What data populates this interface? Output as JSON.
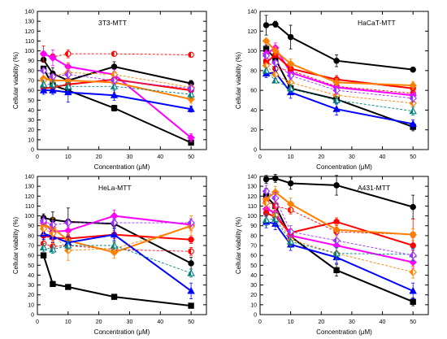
{
  "chart_data": [
    {
      "type": "line",
      "title": "3T3-MTT",
      "xlabel": "Concentration (μM)",
      "ylabel": "Cellular viability (%)",
      "xlim": [
        0,
        55
      ],
      "ylim": [
        0,
        140
      ],
      "xticks": [
        0,
        10,
        20,
        30,
        40,
        50
      ],
      "yticks": [
        0,
        10,
        20,
        30,
        40,
        50,
        60,
        70,
        80,
        90,
        100,
        110,
        120,
        130,
        140
      ],
      "x": [
        2,
        5,
        10,
        25,
        50
      ],
      "series": [
        {
          "color": "#000000",
          "style": "solid",
          "marker": "circle",
          "values": [
            91,
            77,
            70,
            84,
            67
          ]
        },
        {
          "color": "#000000",
          "style": "solid",
          "marker": "square",
          "values": [
            82,
            65,
            60,
            42,
            7
          ]
        },
        {
          "color": "#ff0000",
          "style": "dashed",
          "marker": "half-circle",
          "values": [
            97,
            94,
            97,
            97,
            96
          ]
        },
        {
          "color": "#ff00ff",
          "style": "solid",
          "marker": "diamond",
          "values": [
            97,
            93,
            84,
            76,
            12
          ]
        },
        {
          "color": "#ff0000",
          "style": "solid",
          "marker": "circle",
          "values": [
            62,
            63,
            66,
            71,
            60
          ]
        },
        {
          "color": "#ff7f00",
          "style": "solid",
          "marker": "diamond",
          "values": [
            72,
            70,
            70,
            68,
            51
          ]
        },
        {
          "color": "#0000ff",
          "style": "solid",
          "marker": "triangle",
          "values": [
            60,
            60,
            58,
            55,
            41
          ]
        },
        {
          "color": "#ff7f00",
          "style": "dashed",
          "marker": "half-diamond",
          "values": [
            70,
            74,
            78,
            76,
            63
          ]
        },
        {
          "color": "#008080",
          "style": "dashed",
          "marker": "half-triangle",
          "values": [
            66,
            66,
            64,
            64,
            56
          ]
        },
        {
          "color": "#9b30ff",
          "style": "dashed",
          "marker": "half-diamond",
          "values": [
            80,
            74,
            76,
            70,
            62
          ]
        }
      ]
    },
    {
      "type": "line",
      "title": "HaCaT-MTT",
      "xlabel": "Concentration (μM)",
      "ylabel": "Cellular viability (%)",
      "xlim": [
        0,
        55
      ],
      "ylim": [
        0,
        140
      ],
      "xticks": [
        0,
        10,
        20,
        30,
        40,
        50
      ],
      "yticks": [
        0,
        20,
        40,
        60,
        80,
        100,
        120,
        140
      ],
      "x": [
        2,
        5,
        10,
        25,
        50
      ],
      "series": [
        {
          "color": "#000000",
          "style": "solid",
          "marker": "circle",
          "values": [
            126,
            127,
            114,
            90,
            81
          ]
        },
        {
          "color": "#000000",
          "style": "solid",
          "marker": "square",
          "values": [
            102,
            92,
            62,
            51,
            23
          ]
        },
        {
          "color": "#ff0000",
          "style": "dashed",
          "marker": "half-circle",
          "values": [
            90,
            82,
            80,
            64,
            57
          ]
        },
        {
          "color": "#ff00ff",
          "style": "solid",
          "marker": "diamond",
          "values": [
            97,
            103,
            78,
            63,
            55
          ]
        },
        {
          "color": "#ff0000",
          "style": "solid",
          "marker": "circle",
          "values": [
            88,
            96,
            82,
            71,
            62
          ]
        },
        {
          "color": "#ff7f00",
          "style": "solid",
          "marker": "diamond",
          "values": [
            110,
            100,
            87,
            68,
            65
          ]
        },
        {
          "color": "#0000ff",
          "style": "solid",
          "marker": "triangle",
          "values": [
            77,
            78,
            58,
            41,
            26
          ]
        },
        {
          "color": "#ff7f00",
          "style": "dashed",
          "marker": "half-diamond",
          "values": [
            85,
            76,
            68,
            55,
            47
          ]
        },
        {
          "color": "#008080",
          "style": "dashed",
          "marker": "half-triangle",
          "values": [
            80,
            70,
            62,
            50,
            39
          ]
        },
        {
          "color": "#9b30ff",
          "style": "dashed",
          "marker": "half-diamond",
          "values": [
            95,
            88,
            75,
            60,
            52
          ]
        }
      ]
    },
    {
      "type": "line",
      "title": "HeLa-MTT",
      "xlabel": "Concentration (μM)",
      "ylabel": "Cellular viability (%)",
      "xlim": [
        0,
        55
      ],
      "ylim": [
        0,
        140
      ],
      "xticks": [
        0,
        10,
        20,
        30,
        40,
        50
      ],
      "yticks": [
        0,
        10,
        20,
        30,
        40,
        50,
        60,
        70,
        80,
        90,
        100,
        110,
        120,
        130,
        140
      ],
      "x": [
        2,
        5,
        10,
        25,
        50
      ],
      "series": [
        {
          "color": "#000000",
          "style": "solid",
          "marker": "circle",
          "values": [
            98,
            96,
            94,
            92,
            52
          ]
        },
        {
          "color": "#000000",
          "style": "solid",
          "marker": "square",
          "values": [
            60,
            31,
            28,
            18,
            9
          ]
        },
        {
          "color": "#ff0000",
          "style": "dashed",
          "marker": "half-circle",
          "values": [
            72,
            69,
            70,
            66,
            64
          ]
        },
        {
          "color": "#ff00ff",
          "style": "solid",
          "marker": "diamond",
          "values": [
            93,
            84,
            85,
            100,
            91
          ]
        },
        {
          "color": "#ff0000",
          "style": "solid",
          "marker": "circle",
          "values": [
            80,
            78,
            77,
            81,
            76
          ]
        },
        {
          "color": "#ff7f00",
          "style": "solid",
          "marker": "diamond",
          "values": [
            90,
            88,
            75,
            63,
            90
          ]
        },
        {
          "color": "#0000ff",
          "style": "solid",
          "marker": "triangle",
          "values": [
            82,
            79,
            73,
            81,
            24
          ]
        },
        {
          "color": "#ff7f00",
          "style": "dashed",
          "marker": "half-diamond",
          "values": [
            87,
            82,
            65,
            67,
            89
          ]
        },
        {
          "color": "#008080",
          "style": "dashed",
          "marker": "half-triangle",
          "values": [
            68,
            66,
            70,
            70,
            42
          ]
        },
        {
          "color": "#9b30ff",
          "style": "dashed",
          "marker": "half-diamond",
          "values": [
            95,
            91,
            93,
            93,
            93
          ]
        }
      ]
    },
    {
      "type": "line",
      "title": "A431-MTT",
      "xlabel": "Concentration (μM)",
      "ylabel": "Cellular viability (%)",
      "xlim": [
        0,
        55
      ],
      "ylim": [
        0,
        140
      ],
      "xticks": [
        0,
        10,
        20,
        30,
        40,
        50
      ],
      "yticks": [
        0,
        10,
        20,
        30,
        40,
        50,
        60,
        70,
        80,
        90,
        100,
        110,
        120,
        130,
        140
      ],
      "x": [
        2,
        5,
        10,
        25,
        50
      ],
      "series": [
        {
          "color": "#000000",
          "style": "solid",
          "marker": "circle",
          "values": [
            137,
            138,
            133,
            131,
            109
          ]
        },
        {
          "color": "#000000",
          "style": "solid",
          "marker": "square",
          "values": [
            120,
            110,
            79,
            45,
            13
          ]
        },
        {
          "color": "#ff0000",
          "style": "dashed",
          "marker": "half-circle",
          "values": [
            115,
            110,
            106,
            84,
            81
          ]
        },
        {
          "color": "#ff00ff",
          "style": "solid",
          "marker": "diamond",
          "values": [
            107,
            103,
            80,
            70,
            53
          ]
        },
        {
          "color": "#ff0000",
          "style": "solid",
          "marker": "circle",
          "values": [
            103,
            99,
            83,
            94,
            70
          ]
        },
        {
          "color": "#ff7f00",
          "style": "solid",
          "marker": "diamond",
          "values": [
            117,
            124,
            112,
            86,
            81
          ]
        },
        {
          "color": "#0000ff",
          "style": "solid",
          "marker": "triangle",
          "values": [
            94,
            92,
            71,
            58,
            24
          ]
        },
        {
          "color": "#ff7f00",
          "style": "dashed",
          "marker": "half-diamond",
          "values": [
            113,
            101,
            76,
            62,
            43
          ]
        },
        {
          "color": "#008080",
          "style": "dashed",
          "marker": "half-triangle",
          "values": [
            96,
            97,
            74,
            62,
            61
          ]
        },
        {
          "color": "#9b30ff",
          "style": "dashed",
          "marker": "half-diamond",
          "values": [
            125,
            118,
            84,
            75,
            60
          ]
        }
      ]
    }
  ]
}
